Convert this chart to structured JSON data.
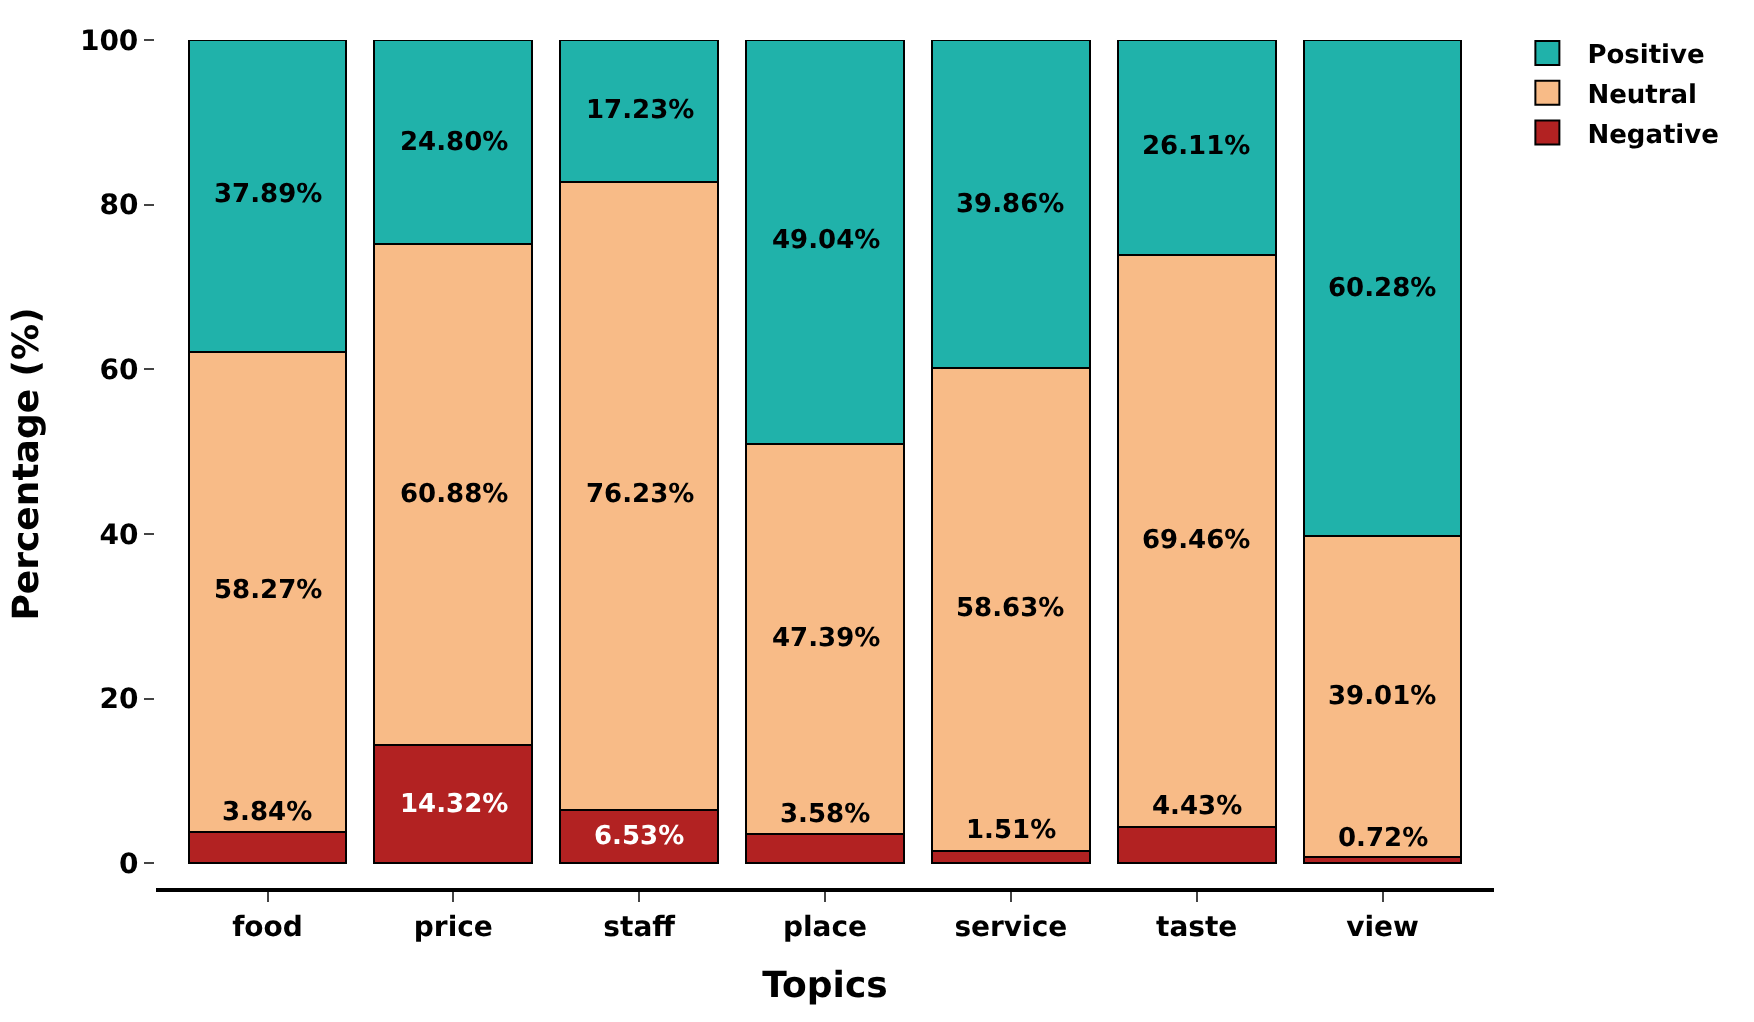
{
  "chart_data": {
    "type": "bar",
    "stacked": true,
    "xlabel": "Topics",
    "ylabel": "Percentage (%)",
    "categories": [
      "food",
      "price",
      "staff",
      "place",
      "service",
      "taste",
      "view"
    ],
    "series": [
      {
        "name": "Negative",
        "color": "#b22222",
        "values": [
          3.84,
          14.32,
          6.53,
          3.58,
          1.51,
          4.43,
          0.72
        ],
        "value_labels": [
          "3.84%",
          "14.32%",
          "6.53%",
          "3.58%",
          "1.51%",
          "4.43%",
          "0.72%"
        ]
      },
      {
        "name": "Neutral",
        "color": "#f8bb87",
        "values": [
          58.27,
          60.88,
          76.23,
          47.39,
          58.63,
          69.46,
          39.01
        ],
        "value_labels": [
          "58.27%",
          "60.88%",
          "76.23%",
          "47.39%",
          "58.63%",
          "69.46%",
          "39.01%"
        ]
      },
      {
        "name": "Positive",
        "color": "#20b2aa",
        "values": [
          37.89,
          24.8,
          17.23,
          49.04,
          39.86,
          26.11,
          60.28
        ],
        "value_labels": [
          "37.89%",
          "24.80%",
          "17.23%",
          "49.04%",
          "39.86%",
          "26.11%",
          "60.28%"
        ]
      }
    ],
    "ylim": [
      -3,
      100
    ],
    "yticks": [
      0,
      20,
      40,
      60,
      80,
      100
    ],
    "legend": "top right"
  }
}
